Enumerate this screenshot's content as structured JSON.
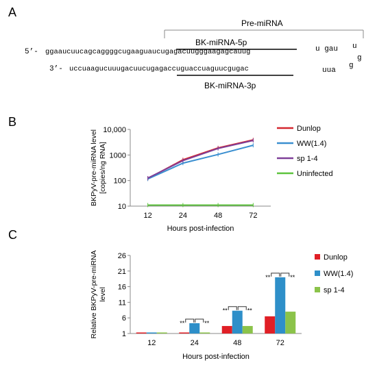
{
  "panel_a": {
    "letter": "A",
    "premirna_label": "Pre-miRNA",
    "mir5p_label": "BK-miRNA-5p",
    "mir3p_label": "BK-miRNA-3p",
    "top_prefix": "5’-",
    "top_seq": "ggaaucuucagcaggggcugaaguaucugagacuugggaagagcauug",
    "top_loop": "u gau",
    "bottom_prefix": "3’-",
    "bottom_seq": "uccuaagucuuugacuucugagaccuguaccuaguucgugac",
    "bottom_loop": "uua",
    "loop_u": "u",
    "loop_g1": "g",
    "loop_g2": "g"
  },
  "panel_b": {
    "letter": "B"
  },
  "panel_c": {
    "letter": "C"
  },
  "chart_data": [
    {
      "type": "line",
      "panel": "B",
      "ylabel_line1": "BKPyV-pre-miRNA level",
      "ylabel_line2": "[copies/ng RNA]",
      "xlabel": "Hours post-infection",
      "categories": [
        "12",
        "24",
        "48",
        "72"
      ],
      "y_scale": "log",
      "ylim": [
        10,
        10000
      ],
      "yticks": [
        "10",
        "100",
        "1000",
        "10,000"
      ],
      "series": [
        {
          "name": "Dunlop",
          "color": "#d4262e",
          "values": [
            120,
            650,
            1900,
            3900
          ]
        },
        {
          "name": "WW(1.4)",
          "color": "#3a8fd0",
          "values": [
            115,
            480,
            1050,
            2400
          ]
        },
        {
          "name": "sp 1-4",
          "color": "#7e3f98",
          "values": [
            125,
            600,
            1800,
            3700
          ]
        },
        {
          "name": "Uninfected",
          "color": "#5cc33c",
          "values": [
            11,
            11,
            11,
            11
          ]
        }
      ],
      "legend": "right"
    },
    {
      "type": "bar",
      "panel": "C",
      "ylabel_line1": "Relative BKPyV-pre-miRNA",
      "ylabel_line2": "level",
      "xlabel": "Hours post-infection",
      "categories": [
        "12",
        "24",
        "48",
        "72"
      ],
      "ylim": [
        1,
        26
      ],
      "yticks": [
        "1",
        "6",
        "11",
        "16",
        "21",
        "26"
      ],
      "series": [
        {
          "name": "Dunlop",
          "color": "#e01f26",
          "values": [
            1,
            1.2,
            3.4,
            6.5
          ]
        },
        {
          "name": "WW(1.4)",
          "color": "#2e8fc9",
          "values": [
            1,
            4.3,
            8.3,
            19
          ]
        },
        {
          "name": "sp 1-4",
          "color": "#8bc34a",
          "values": [
            1,
            1.1,
            3.4,
            8
          ]
        }
      ],
      "significance": "**",
      "legend": "right"
    }
  ]
}
